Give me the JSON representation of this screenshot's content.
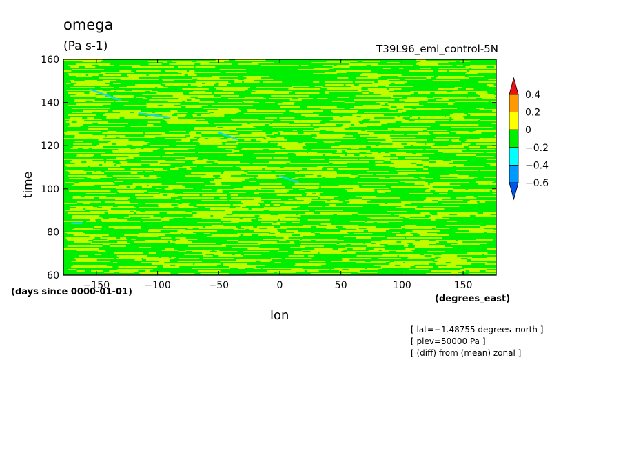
{
  "chart_data": {
    "type": "heatmap",
    "title": "omega",
    "units": "(Pa s-1)",
    "run_label": "T39L96_eml_control-5N",
    "xlabel": "lon",
    "xunits": "(degrees_east)",
    "ylabel": "time",
    "yunits": "(days since 0000-01-01)",
    "xlim": [
      -177,
      177
    ],
    "ylim": [
      60,
      160
    ],
    "x_ticks": [
      -150,
      -100,
      -50,
      0,
      50,
      100,
      150
    ],
    "x_tick_labels": [
      "−150",
      "−100",
      "−50",
      "0",
      "50",
      "100",
      "150"
    ],
    "y_ticks": [
      60,
      80,
      100,
      120,
      140,
      160
    ],
    "y_tick_labels": [
      "60",
      "80",
      "100",
      "120",
      "140",
      "160"
    ],
    "colorbar": {
      "levels": [
        0.4,
        0.2,
        0,
        -0.2,
        -0.4,
        -0.6
      ],
      "level_labels": [
        "0.4",
        "0.2",
        "0",
        "−0.2",
        "−0.4",
        "−0.6"
      ],
      "colors": [
        "#ee1111",
        "#ff9900",
        "#ffff00",
        "#00ee00",
        "#00ffff",
        "#0099ff",
        "#0055ee"
      ]
    },
    "dominant_classes": [
      {
        "range": "0 to 0.2",
        "color": "#ffff00"
      },
      {
        "range": "-0.2 to 0",
        "color": "#00ee00"
      }
    ],
    "features": [
      {
        "lon": [
          -155,
          -130
        ],
        "time": [
          146,
          141
        ],
        "range": "-0.4 to -0.2"
      },
      {
        "lon": [
          -115,
          -90
        ],
        "time": [
          135,
          133
        ],
        "range": "-0.4 to -0.2"
      },
      {
        "lon": [
          -50,
          -35
        ],
        "time": [
          126,
          123
        ],
        "range": "-0.4 to -0.2"
      },
      {
        "lon": [
          0,
          15
        ],
        "time": [
          106,
          103
        ],
        "range": "-0.4 to -0.2"
      },
      {
        "lon": [
          -170,
          -162
        ],
        "time": [
          84,
          84
        ],
        "range": "-0.4 to -0.2"
      }
    ]
  },
  "annotations": [
    "[ lat=−1.48755 degrees_north ]",
    "[ plev=50000 Pa ]",
    "[ (diff) from (mean) zonal ]"
  ]
}
